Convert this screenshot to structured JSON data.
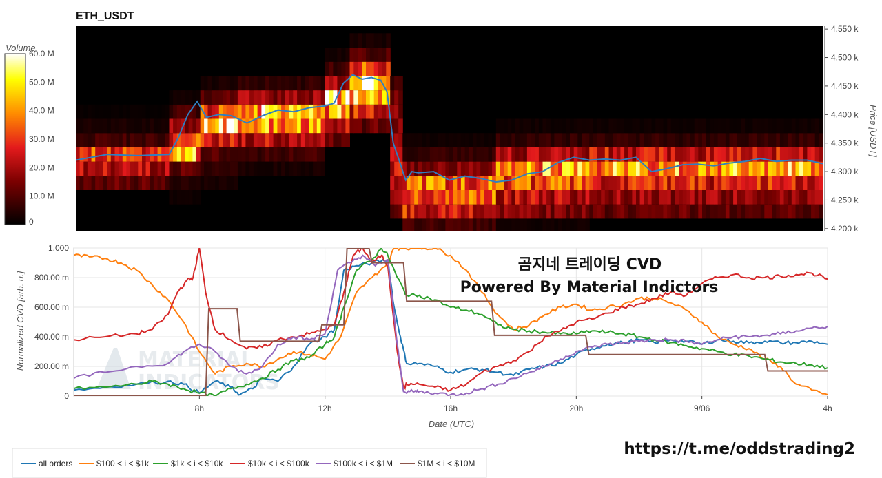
{
  "chart_data": [
    {
      "type": "heatmap",
      "title": "ETH_USDT",
      "ylabel": "Price [USDT]",
      "ylim": [
        4195,
        4555
      ],
      "y_ticks": [
        "4.200 k",
        "4.250 k",
        "4.300 k",
        "4.350 k",
        "4.400 k",
        "4.450 k",
        "4.500 k",
        "4.550 k"
      ],
      "y_tick_values": [
        4200,
        4250,
        4300,
        4350,
        4400,
        4450,
        4500,
        4550
      ],
      "colorbar": {
        "title": "Volume",
        "range": [
          0,
          60
        ],
        "ticks": [
          "0",
          "10.0 M",
          "20.0 M",
          "30.0 M",
          "40.0 M",
          "50.0 M",
          "60.0 M"
        ],
        "tick_values": [
          0,
          10,
          20,
          30,
          40,
          50,
          60
        ]
      },
      "price_bins": [
        4205,
        4230,
        4255,
        4280,
        4305,
        4330,
        4355,
        4380,
        4405,
        4430,
        4455,
        4480,
        4505,
        4530
      ],
      "bin_height": 25,
      "time_segments": [
        {
          "t0": 4.0,
          "t1": 7.0,
          "bins": {
            "4280": 12,
            "4305": 22,
            "4330": 30,
            "4355": 8,
            "4380": 3,
            "4405": 1
          }
        },
        {
          "t0": 7.0,
          "t1": 8.0,
          "bins": {
            "4255": 2,
            "4280": 4,
            "4305": 12,
            "4330": 40,
            "4355": 30,
            "4380": 18,
            "4405": 8,
            "4430": 2
          }
        },
        {
          "t0": 8.0,
          "t1": 9.2,
          "bins": {
            "4280": 3,
            "4305": 6,
            "4330": 10,
            "4355": 28,
            "4380": 45,
            "4405": 30,
            "4430": 12,
            "4455": 3
          }
        },
        {
          "t0": 9.2,
          "t1": 12.0,
          "bins": {
            "4305": 3,
            "4330": 8,
            "4355": 22,
            "4380": 42,
            "4405": 45,
            "4430": 18,
            "4455": 6
          }
        },
        {
          "t0": 12.0,
          "t1": 12.8,
          "bins": {
            "4355": 12,
            "4380": 26,
            "4405": 40,
            "4430": 48,
            "4455": 22,
            "4480": 8,
            "4505": 3
          }
        },
        {
          "t0": 12.8,
          "t1": 14.1,
          "bins": {
            "4380": 12,
            "4405": 26,
            "4430": 44,
            "4455": 55,
            "4480": 30,
            "4505": 10,
            "4530": 3
          }
        },
        {
          "t0": 14.1,
          "t1": 14.5,
          "bins": {
            "4230": 10,
            "4255": 18,
            "4280": 22,
            "4305": 24,
            "4330": 20,
            "4355": 16,
            "4380": 14,
            "4405": 18,
            "4430": 16,
            "4455": 8
          }
        },
        {
          "t0": 14.5,
          "t1": 17.5,
          "bins": {
            "4205": 8,
            "4230": 26,
            "4255": 32,
            "4280": 34,
            "4305": 16,
            "4330": 6,
            "4355": 2
          }
        },
        {
          "t0": 17.5,
          "t1": 20.5,
          "bins": {
            "4205": 2,
            "4230": 16,
            "4255": 22,
            "4280": 32,
            "4305": 40,
            "4330": 20,
            "4355": 6,
            "4380": 2
          }
        },
        {
          "t0": 20.5,
          "t1": 28.0,
          "bins": {
            "4230": 12,
            "4255": 18,
            "4280": 26,
            "4305": 42,
            "4330": 24,
            "4355": 6,
            "4380": 2
          }
        }
      ],
      "price_line": {
        "t": [
          4.0,
          5.0,
          6.0,
          7.0,
          7.3,
          7.6,
          7.9,
          8.2,
          8.6,
          9.0,
          9.5,
          10.0,
          10.5,
          11.0,
          11.5,
          12.0,
          12.3,
          12.6,
          12.9,
          13.2,
          13.5,
          13.8,
          14.0,
          14.2,
          14.4,
          14.6,
          14.8,
          15.0,
          15.5,
          16.0,
          16.5,
          17.0,
          17.5,
          18.0,
          18.5,
          19.0,
          19.5,
          20.0,
          20.5,
          21.0,
          21.5,
          22.0,
          22.5,
          23.0,
          23.5,
          24.0,
          24.5,
          25.0,
          25.5,
          26.0,
          26.5,
          27.0,
          27.5,
          28.0
        ],
        "price": [
          4320,
          4330,
          4328,
          4330,
          4360,
          4400,
          4423,
          4395,
          4400,
          4398,
          4385,
          4398,
          4408,
          4405,
          4412,
          4415,
          4420,
          4455,
          4470,
          4462,
          4465,
          4460,
          4440,
          4350,
          4318,
          4285,
          4300,
          4298,
          4300,
          4285,
          4292,
          4288,
          4282,
          4285,
          4296,
          4300,
          4316,
          4325,
          4320,
          4322,
          4320,
          4325,
          4300,
          4305,
          4312,
          4313,
          4310,
          4315,
          4318,
          4323,
          4318,
          4320,
          4320,
          4314
        ]
      }
    },
    {
      "type": "line",
      "xlabel": "Date (UTC)",
      "ylabel": "Normalized CVD [arb. u.]",
      "x_unit": "hours from 00:00 on 9/05 (UTC)",
      "xlim": [
        4.0,
        28.0
      ],
      "ylim": [
        0,
        1
      ],
      "x_ticks": [
        "8h",
        "12h",
        "16h",
        "20h",
        "9/06",
        "4h"
      ],
      "x_tick_values": [
        8,
        12,
        16,
        20,
        24,
        28
      ],
      "y_ticks": [
        "0",
        "200.00 m",
        "400.00 m",
        "600.00 m",
        "800.00 m",
        "1.000"
      ],
      "y_tick_values": [
        0,
        0.2,
        0.4,
        0.6,
        0.8,
        1.0
      ],
      "legend_position": "bottom-left",
      "series": [
        {
          "name": "all orders",
          "color": "#1f77b4",
          "x": [
            4.0,
            5.0,
            6.0,
            7.0,
            7.5,
            8.0,
            8.5,
            9.0,
            9.3,
            9.7,
            10.0,
            10.5,
            11.0,
            11.5,
            12.0,
            12.3,
            12.6,
            13.0,
            13.5,
            14.0,
            14.2,
            14.4,
            14.6,
            15.0,
            15.5,
            16.0,
            16.5,
            17.0,
            17.5,
            18.0,
            18.5,
            19.0,
            19.5,
            20.0,
            20.5,
            21.0,
            21.5,
            22.0,
            22.5,
            23.0,
            23.5,
            24.0,
            24.5,
            25.0,
            25.5,
            26.0,
            26.5,
            27.0,
            27.5,
            28.0
          ],
          "y": [
            0.04,
            0.06,
            0.08,
            0.1,
            0.08,
            0.02,
            0.1,
            0.06,
            0.01,
            0.05,
            0.12,
            0.1,
            0.2,
            0.35,
            0.4,
            0.45,
            0.85,
            0.88,
            0.9,
            0.92,
            0.6,
            0.4,
            0.22,
            0.22,
            0.2,
            0.16,
            0.18,
            0.18,
            0.16,
            0.14,
            0.18,
            0.2,
            0.22,
            0.28,
            0.32,
            0.35,
            0.36,
            0.38,
            0.36,
            0.38,
            0.37,
            0.35,
            0.38,
            0.37,
            0.36,
            0.37,
            0.36,
            0.36,
            0.37,
            0.35
          ]
        },
        {
          "name": "$100 < i < $1k",
          "color": "#ff7f0e",
          "x": [
            4.0,
            4.5,
            5.0,
            5.5,
            6.0,
            6.5,
            7.0,
            7.5,
            8.0,
            8.5,
            9.0,
            9.5,
            10.0,
            10.5,
            11.0,
            11.5,
            12.0,
            12.5,
            13.0,
            13.5,
            14.0,
            14.2,
            14.5,
            15.0,
            15.5,
            16.0,
            16.5,
            17.0,
            17.5,
            18.0,
            18.5,
            19.0,
            19.5,
            20.0,
            20.5,
            21.0,
            21.5,
            22.0,
            22.5,
            23.0,
            23.5,
            24.0,
            24.5,
            25.0,
            25.5,
            26.0,
            26.5,
            27.0,
            27.5,
            28.0
          ],
          "y": [
            0.95,
            0.94,
            0.93,
            0.9,
            0.85,
            0.75,
            0.65,
            0.5,
            0.3,
            0.15,
            0.2,
            0.22,
            0.2,
            0.25,
            0.3,
            0.28,
            0.25,
            0.4,
            0.7,
            0.8,
            0.9,
            1.0,
            1.0,
            1.0,
            1.0,
            0.95,
            0.85,
            0.7,
            0.55,
            0.45,
            0.48,
            0.55,
            0.6,
            0.62,
            0.58,
            0.6,
            0.62,
            0.66,
            0.66,
            0.63,
            0.58,
            0.5,
            0.4,
            0.35,
            0.32,
            0.25,
            0.2,
            0.08,
            0.04,
            0.01
          ]
        },
        {
          "name": "$1k < i < $10k",
          "color": "#2ca02c",
          "x": [
            4.0,
            5.0,
            6.0,
            6.5,
            7.0,
            7.5,
            8.0,
            8.5,
            9.0,
            9.5,
            10.0,
            10.5,
            11.0,
            11.5,
            12.0,
            12.3,
            12.6,
            13.0,
            13.5,
            13.8,
            14.0,
            14.3,
            14.6,
            15.0,
            15.5,
            16.0,
            16.5,
            17.0,
            17.5,
            18.0,
            18.5,
            19.0,
            19.5,
            20.0,
            20.5,
            21.0,
            21.5,
            22.0,
            22.5,
            23.0,
            23.5,
            24.0,
            24.5,
            25.0,
            25.5,
            26.0,
            26.5,
            27.0,
            27.5,
            28.0
          ],
          "y": [
            0.05,
            0.06,
            0.08,
            0.1,
            0.08,
            0.05,
            0.02,
            0.0,
            0.05,
            0.08,
            0.12,
            0.18,
            0.24,
            0.26,
            0.35,
            0.4,
            0.6,
            0.85,
            0.92,
            1.0,
            0.95,
            0.8,
            0.68,
            0.68,
            0.65,
            0.6,
            0.58,
            0.55,
            0.48,
            0.45,
            0.44,
            0.43,
            0.42,
            0.42,
            0.44,
            0.43,
            0.42,
            0.4,
            0.38,
            0.36,
            0.34,
            0.32,
            0.3,
            0.28,
            0.27,
            0.25,
            0.23,
            0.22,
            0.21,
            0.19
          ]
        },
        {
          "name": "$10k < i < $100k",
          "color": "#d62728",
          "x": [
            4.0,
            5.0,
            6.0,
            6.5,
            7.0,
            7.3,
            7.6,
            7.8,
            8.0,
            8.2,
            8.5,
            9.0,
            9.5,
            10.0,
            10.5,
            11.0,
            11.5,
            12.0,
            12.3,
            12.6,
            12.9,
            13.2,
            13.5,
            13.8,
            14.0,
            14.3,
            14.5,
            14.6,
            15.0,
            15.5,
            16.0,
            16.5,
            17.0,
            17.5,
            18.0,
            18.5,
            19.0,
            19.5,
            20.0,
            20.5,
            21.0,
            21.5,
            22.0,
            22.5,
            23.0,
            23.5,
            24.0,
            24.5,
            25.0,
            25.5,
            26.0,
            26.5,
            27.0,
            27.5,
            28.0
          ],
          "y": [
            0.38,
            0.4,
            0.42,
            0.45,
            0.55,
            0.7,
            0.78,
            0.8,
            1.0,
            0.7,
            0.45,
            0.38,
            0.32,
            0.33,
            0.38,
            0.4,
            0.42,
            0.45,
            0.48,
            0.7,
            0.95,
            1.0,
            0.9,
            0.95,
            0.88,
            0.3,
            0.05,
            0.08,
            0.08,
            0.06,
            0.04,
            0.08,
            0.16,
            0.2,
            0.24,
            0.3,
            0.4,
            0.44,
            0.5,
            0.52,
            0.56,
            0.6,
            0.62,
            0.66,
            0.7,
            0.68,
            0.76,
            0.8,
            0.82,
            0.8,
            0.8,
            0.81,
            0.82,
            0.83,
            0.79
          ]
        },
        {
          "name": "$100k < i < $1M",
          "color": "#9467bd",
          "x": [
            4.0,
            5.0,
            6.0,
            7.0,
            7.5,
            8.0,
            8.5,
            9.0,
            9.5,
            10.0,
            10.5,
            11.0,
            11.5,
            12.0,
            12.4,
            12.8,
            13.2,
            13.6,
            14.0,
            14.3,
            14.5,
            14.8,
            15.0,
            15.5,
            16.0,
            16.5,
            17.0,
            17.5,
            18.0,
            18.5,
            19.0,
            19.5,
            20.0,
            20.5,
            21.0,
            21.5,
            22.0,
            22.5,
            23.0,
            23.5,
            24.0,
            24.5,
            25.0,
            25.5,
            26.0,
            26.5,
            27.0,
            27.5,
            28.0
          ],
          "y": [
            0.12,
            0.16,
            0.2,
            0.22,
            0.3,
            0.35,
            0.3,
            0.2,
            0.15,
            0.2,
            0.35,
            0.4,
            0.38,
            0.42,
            0.85,
            0.9,
            0.95,
            0.88,
            0.92,
            0.35,
            0.03,
            0.03,
            0.03,
            0.02,
            0.01,
            0.02,
            0.05,
            0.08,
            0.12,
            0.16,
            0.2,
            0.25,
            0.3,
            0.33,
            0.35,
            0.36,
            0.37,
            0.38,
            0.38,
            0.37,
            0.35,
            0.38,
            0.4,
            0.4,
            0.41,
            0.42,
            0.44,
            0.46,
            0.47
          ]
        },
        {
          "name": "$1M < i < $10M",
          "color": "#8c564b",
          "x": [
            4.0,
            8.2,
            8.3,
            9.2,
            9.3,
            11.8,
            11.9,
            12.6,
            12.7,
            13.4,
            13.5,
            14.0,
            14.1,
            14.5,
            14.6,
            17.3,
            17.4,
            20.3,
            20.4,
            26.0,
            26.1,
            28.0
          ],
          "y": [
            0.0,
            0.0,
            0.59,
            0.59,
            0.37,
            0.37,
            0.48,
            0.48,
            1.0,
            1.0,
            0.9,
            0.9,
            0.9,
            0.9,
            0.64,
            0.64,
            0.41,
            0.41,
            0.28,
            0.28,
            0.17,
            0.17
          ]
        }
      ]
    }
  ],
  "watermark": {
    "line1": "곰지네 트레이딩 CVD",
    "line2": "Powered By Material Indictors"
  },
  "logo_text": [
    "MATERIAL",
    "INDICATORS"
  ],
  "footer_link": "https://t.me/oddstrading2",
  "legend_items": [
    "all orders",
    "$100 < i < $1k",
    "$1k < i < $10k",
    "$10k < i < $100k",
    "$100k < i < $1M",
    "$1M < i < $10M"
  ]
}
